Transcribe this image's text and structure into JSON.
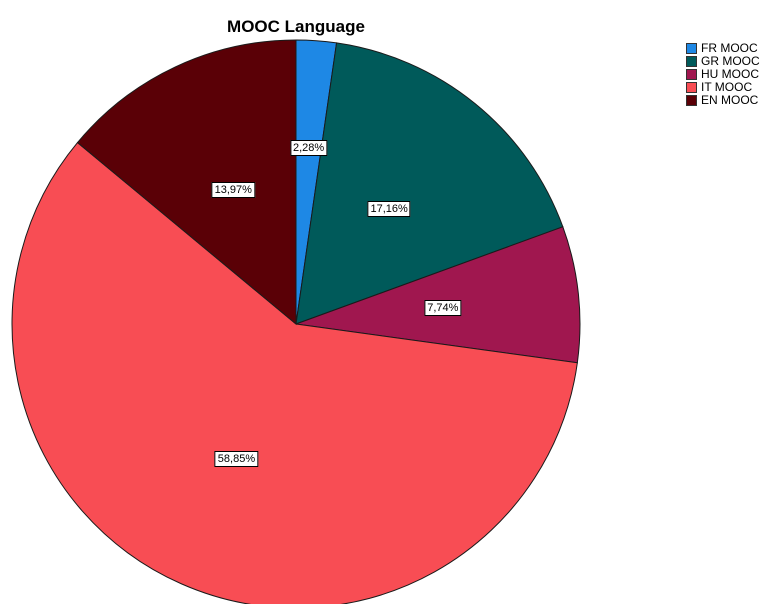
{
  "chart_data": {
    "type": "pie",
    "title": "MOOC Language",
    "categories": [
      "FR MOOC",
      "GR MOOC",
      "HU MOOC",
      "IT MOOC",
      "EN MOOC"
    ],
    "values": [
      2.28,
      17.16,
      7.74,
      58.85,
      13.97
    ],
    "value_labels": [
      "2,28%",
      "17,16%",
      "7,74%",
      "58,85%",
      "13,97%"
    ],
    "colors": [
      "#1e88e5",
      "#005a5a",
      "#a0174f",
      "#f84d54",
      "#5a0006"
    ],
    "legend_position": "top-right",
    "start_angle": "12 o'clock",
    "direction": "clockwise"
  }
}
